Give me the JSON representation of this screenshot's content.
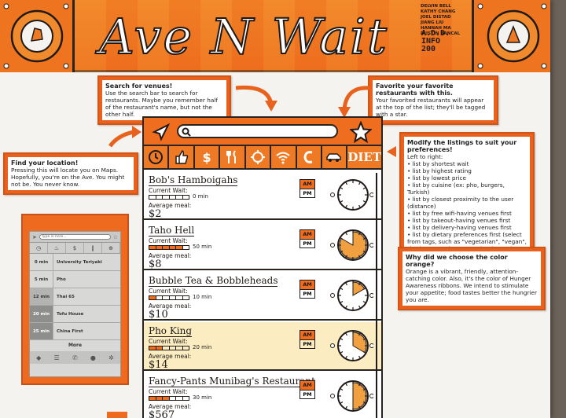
{
  "banner": {
    "title": "Ave N Wait",
    "credits": [
      "DELVIN BELL",
      "KATHY CHANG",
      "JOEL DISTAD",
      "JIANG LIU",
      "HANNAH MA",
      "DUSTIN BANCAL"
    ],
    "team_lines": [
      "A.D.D.",
      "INFO",
      "200"
    ]
  },
  "callouts": {
    "search": {
      "title": "Search for venues!",
      "body": "Use the search bar to search for restaurants. Maybe you remember half of the restaurant's name, but not the other half."
    },
    "favorite": {
      "title": "Favorite your favorite restaurants with this.",
      "body": "Your favorited restaurants will appear at the top of the list; they'll be tagged with a star."
    },
    "location": {
      "title": "Find your location!",
      "body": "Pressing this will locate you on Maps. Hopefully, you're on the Ave. You might not be. You never know."
    },
    "modify": {
      "title": "Modify the listings to suit your preferences!",
      "subtitle": "Left to right:",
      "items": [
        "list by shortest wait",
        "list by highest rating",
        "list by lowest price",
        "list by cuisine (ex: pho, burgers, Turkish)",
        "list by closest proximity to the user (distance)",
        "list by free wifi-having venues first",
        "list by takeout-having venues first",
        "list by delivery-having venues first",
        "list by dietary preferences first (select from tags, such as \"vegetarian\", \"vegan\", \"kosher\", \"I only eat spaghetti\", etc.)"
      ]
    },
    "orange": {
      "title": "Why did we choose the color orange?",
      "body": "Orange is a vibrant, friendly, attention-catching color. Also, it's the color of Hunger Awareness ribbons. We intend to stimulate your appetite; food tastes better the hungrier you are."
    }
  },
  "mockup": {
    "filters": [
      "shortest-wait",
      "rating",
      "price",
      "cuisine",
      "distance",
      "wifi",
      "takeout",
      "delivery",
      "diet"
    ],
    "filter_labels": {
      "price": "$",
      "diet": "DIET"
    },
    "wait_label": "Current Wait:",
    "meal_label": "Average meal:",
    "am_label": "AM",
    "pm_label": "PM",
    "restaurants": [
      {
        "name": "Bob's Hamboigahs",
        "wait": "0 min",
        "filled": 0,
        "price": "$2",
        "highlight": false
      },
      {
        "name": "Taho Hell",
        "wait": "50 min",
        "filled": 5,
        "price": "$8",
        "highlight": false
      },
      {
        "name": "Bubble Tea & Bobbleheads",
        "wait": "10 min",
        "filled": 1,
        "price": "$10",
        "highlight": false
      },
      {
        "name": "Pho King",
        "wait": "20 min",
        "filled": 2,
        "price": "$14",
        "highlight": true
      },
      {
        "name": "Fancy-Pants Munibag's Restaurant",
        "wait": "30 min",
        "filled": 3,
        "price": "$567",
        "highlight": false
      }
    ]
  },
  "mini_phone": {
    "search_placeholder": "Type in here...",
    "rows": [
      {
        "time": "0 min",
        "name": "University Teriyaki",
        "shade": "none"
      },
      {
        "time": "5 min",
        "name": "Pho",
        "shade": "none"
      },
      {
        "time": "12 min",
        "name": "Thai 65",
        "shade": "mid"
      },
      {
        "time": "20 min",
        "name": "Tofu House",
        "shade": "dark"
      },
      {
        "time": "25 min",
        "name": "China First",
        "shade": "dark"
      }
    ],
    "more_label": "More"
  },
  "colors": {
    "orange": "#ee6d1f",
    "ink": "#1f1a17",
    "board": "#f4f3ef"
  }
}
